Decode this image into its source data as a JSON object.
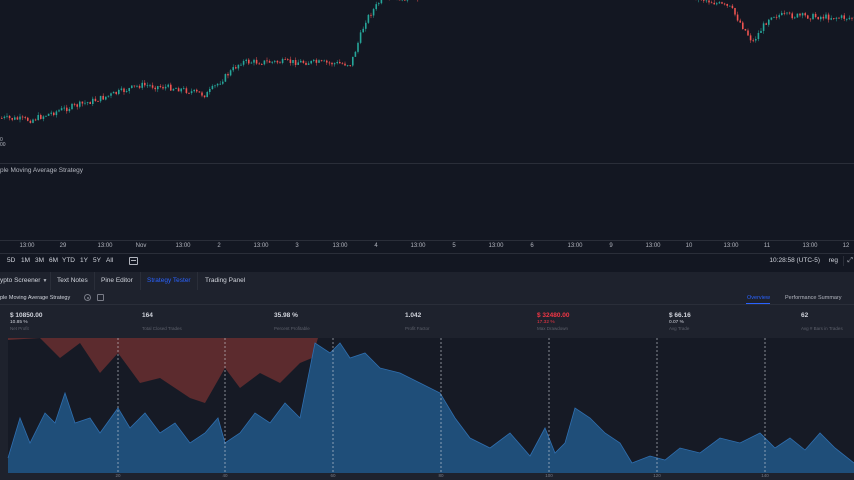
{
  "chart": {
    "indicator_label": "ple Moving Average Strategy",
    "price_labels": [
      "0",
      "00"
    ],
    "time_ticks": [
      "13:00",
      "29",
      "13:00",
      "Nov",
      "13:00",
      "2",
      "13:00",
      "3",
      "13:00",
      "4",
      "13:00",
      "5",
      "13:00",
      "6",
      "13:00",
      "9",
      "13:00",
      "10",
      "13:00",
      "11",
      "13:00",
      "12"
    ],
    "colors": {
      "up": "#26a69a",
      "down": "#ef5350",
      "background": "#131722"
    }
  },
  "range_bar": {
    "buttons": [
      "5D",
      "1M",
      "3M",
      "6M",
      "YTD",
      "1Y",
      "5Y",
      "All"
    ],
    "clock": "10:28:58 (UTC-5)",
    "mode": "reg",
    "calendar_icon": "calendar-icon"
  },
  "tabs": [
    {
      "label": "ypto Screener",
      "active": false,
      "dropdown": true
    },
    {
      "label": "Text Notes",
      "active": false
    },
    {
      "label": "Pine Editor",
      "active": false
    },
    {
      "label": "Strategy Tester",
      "active": true
    },
    {
      "label": "Trading Panel",
      "active": false
    }
  ],
  "strategy": {
    "name": "ple Moving Average Strategy",
    "views": [
      "Overview",
      "Performance Summary"
    ],
    "metrics": [
      {
        "value": "$ 10850.00",
        "sub": "10.85 %",
        "label": "Net Profit"
      },
      {
        "value": "164",
        "sub": "",
        "label": "Total Closed Trades"
      },
      {
        "value": "35.98 %",
        "sub": "",
        "label": "Percent Profitable"
      },
      {
        "value": "1.042",
        "sub": "",
        "label": "Profit Factor"
      },
      {
        "value": "$ 32480.00",
        "sub": "17.32 %",
        "label": "Max Drawdown",
        "negative": true
      },
      {
        "value": "$ 66.16",
        "sub": "0.07 %",
        "label": "Avg Trade"
      },
      {
        "value": "62",
        "sub": "",
        "label": "Avg # Bars in Trades"
      }
    ],
    "equity_x_ticks": [
      "20",
      "40",
      "60",
      "80",
      "100",
      "120",
      "140"
    ],
    "colors": {
      "equity": "#1f4e79",
      "drawdown": "#5c2b2e",
      "buy_hold": "#161a25"
    }
  }
}
